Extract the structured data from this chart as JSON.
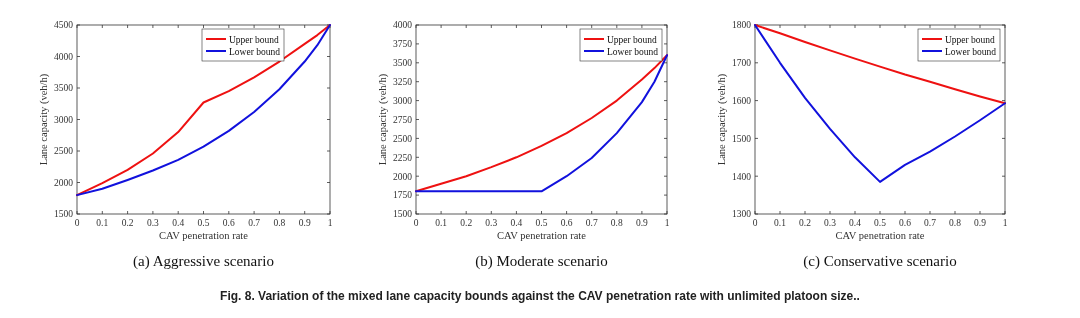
{
  "chart_data": [
    {
      "type": "line",
      "title": "(a) Aggressive scenario",
      "xlabel": "CAV penetration rate",
      "ylabel": "Lane capacity (veh/h)",
      "x": [
        0,
        0.1,
        0.2,
        0.3,
        0.4,
        0.5,
        0.6,
        0.7,
        0.8,
        0.9,
        0.95,
        1
      ],
      "xlim": [
        0,
        1
      ],
      "xticks": [
        0,
        0.1,
        0.2,
        0.3,
        0.4,
        0.5,
        0.6,
        0.7,
        0.8,
        0.9,
        1
      ],
      "ylim": [
        1500,
        4500
      ],
      "yticks": [
        1500,
        2000,
        2500,
        3000,
        3500,
        4000,
        4500
      ],
      "legend": "top right",
      "grid": false,
      "marker": "none",
      "line_style": "solid",
      "series": [
        {
          "name": "Upper bound",
          "color": "#ee1111",
          "values": [
            1800,
            1990,
            2200,
            2460,
            2800,
            3270,
            3450,
            3670,
            3920,
            4200,
            4340,
            4500
          ]
        },
        {
          "name": "Lower bound",
          "color": "#1111dd",
          "values": [
            1800,
            1900,
            2040,
            2190,
            2360,
            2570,
            2820,
            3120,
            3480,
            3920,
            4180,
            4500
          ]
        }
      ],
      "annotations": [
        "Fig. 8.  Variation of the mixed lane capacity bounds against the CAV penetration rate with unlimited platoon size.."
      ]
    },
    {
      "type": "line",
      "title": "(b) Moderate scenario",
      "xlabel": "CAV penetration rate",
      "ylabel": "Lane capacity (veh/h)",
      "x": [
        0,
        0.1,
        0.2,
        0.3,
        0.4,
        0.5,
        0.6,
        0.7,
        0.8,
        0.9,
        0.95,
        1
      ],
      "xlim": [
        0,
        1
      ],
      "xticks": [
        0,
        0.1,
        0.2,
        0.3,
        0.4,
        0.5,
        0.6,
        0.7,
        0.8,
        0.9,
        1
      ],
      "ylim": [
        1500,
        4000
      ],
      "yticks": [
        1500,
        1750,
        2000,
        2250,
        2500,
        2750,
        3000,
        3250,
        3500,
        3750,
        4000
      ],
      "legend": "top right",
      "grid": false,
      "marker": "none",
      "line_style": "solid",
      "series": [
        {
          "name": "Upper bound",
          "color": "#ee1111",
          "values": [
            1800,
            1900,
            2000,
            2120,
            2250,
            2400,
            2570,
            2770,
            3000,
            3280,
            3430,
            3600
          ]
        },
        {
          "name": "Lower bound",
          "color": "#1111dd",
          "values": [
            1800,
            1800,
            1800,
            1800,
            1800,
            1800,
            2000,
            2240,
            2570,
            2980,
            3250,
            3600
          ]
        }
      ]
    },
    {
      "type": "line",
      "title": "(c) Conservative scenario",
      "xlabel": "CAV penetration rate",
      "ylabel": "Lane capacity (veh/h)",
      "x": [
        0,
        0.1,
        0.2,
        0.3,
        0.4,
        0.5,
        0.6,
        0.7,
        0.8,
        0.9,
        1
      ],
      "xlim": [
        0,
        1
      ],
      "xticks": [
        0,
        0.1,
        0.2,
        0.3,
        0.4,
        0.5,
        0.6,
        0.7,
        0.8,
        0.9,
        1
      ],
      "ylim": [
        1300,
        1800
      ],
      "yticks": [
        1300,
        1400,
        1500,
        1600,
        1700,
        1800
      ],
      "legend": "top right",
      "grid": false,
      "marker": "none",
      "line_style": "solid",
      "series": [
        {
          "name": "Upper bound",
          "color": "#ee1111",
          "values": [
            1800,
            1778,
            1755,
            1733,
            1711,
            1690,
            1669,
            1650,
            1630,
            1611,
            1593
          ]
        },
        {
          "name": "Lower bound",
          "color": "#1111dd",
          "values": [
            1800,
            1700,
            1607,
            1525,
            1450,
            1385,
            1430,
            1465,
            1505,
            1548,
            1593
          ]
        }
      ]
    }
  ]
}
